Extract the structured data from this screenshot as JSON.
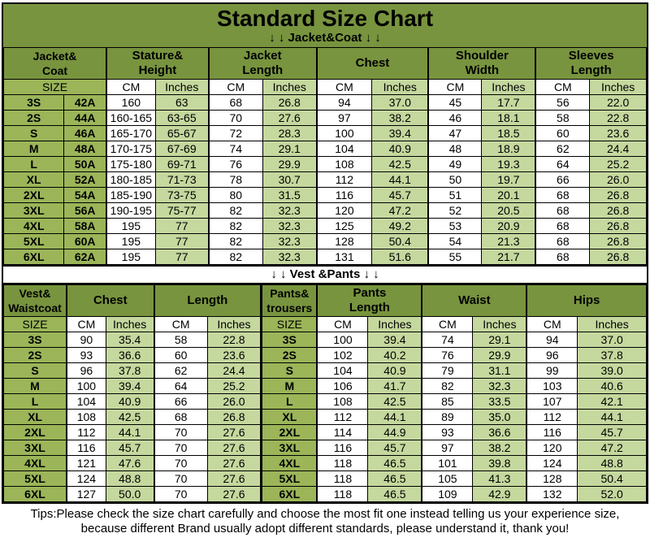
{
  "title": "Standard Size Chart",
  "colors": {
    "header_green": "#78943E",
    "size_green": "#9BB558",
    "light_green": "#C5D89E",
    "border": "#000000",
    "text": "#000000"
  },
  "units": {
    "cm": "CM",
    "inches": "Inches",
    "size": "SIZE"
  },
  "jacket_section": {
    "banner": "↓ ↓  Jacket&Coat  ↓ ↓",
    "groups": [
      "Jacket&\nCoat",
      "Stature&\nHeight",
      "Jacket\nLength",
      "Chest",
      "Shoulder\nWidth",
      "Sleeves\nLength"
    ],
    "rows": [
      {
        "size": "3S",
        "code": "42A",
        "cells": [
          "160",
          "63",
          "68",
          "26.8",
          "94",
          "37.0",
          "45",
          "17.7",
          "56",
          "22.0"
        ]
      },
      {
        "size": "2S",
        "code": "44A",
        "cells": [
          "160-165",
          "63-65",
          "70",
          "27.6",
          "97",
          "38.2",
          "46",
          "18.1",
          "58",
          "22.8"
        ]
      },
      {
        "size": "S",
        "code": "46A",
        "cells": [
          "165-170",
          "65-67",
          "72",
          "28.3",
          "100",
          "39.4",
          "47",
          "18.5",
          "60",
          "23.6"
        ]
      },
      {
        "size": "M",
        "code": "48A",
        "cells": [
          "170-175",
          "67-69",
          "74",
          "29.1",
          "104",
          "40.9",
          "48",
          "18.9",
          "62",
          "24.4"
        ]
      },
      {
        "size": "L",
        "code": "50A",
        "cells": [
          "175-180",
          "69-71",
          "76",
          "29.9",
          "108",
          "42.5",
          "49",
          "19.3",
          "64",
          "25.2"
        ]
      },
      {
        "size": "XL",
        "code": "52A",
        "cells": [
          "180-185",
          "71-73",
          "78",
          "30.7",
          "112",
          "44.1",
          "50",
          "19.7",
          "66",
          "26.0"
        ]
      },
      {
        "size": "2XL",
        "code": "54A",
        "cells": [
          "185-190",
          "73-75",
          "80",
          "31.5",
          "116",
          "45.7",
          "51",
          "20.1",
          "68",
          "26.8"
        ]
      },
      {
        "size": "3XL",
        "code": "56A",
        "cells": [
          "190-195",
          "75-77",
          "82",
          "32.3",
          "120",
          "47.2",
          "52",
          "20.5",
          "68",
          "26.8"
        ]
      },
      {
        "size": "4XL",
        "code": "58A",
        "cells": [
          "195",
          "77",
          "82",
          "32.3",
          "125",
          "49.2",
          "53",
          "20.9",
          "68",
          "26.8"
        ]
      },
      {
        "size": "5XL",
        "code": "60A",
        "cells": [
          "195",
          "77",
          "82",
          "32.3",
          "128",
          "50.4",
          "54",
          "21.3",
          "68",
          "26.8"
        ]
      },
      {
        "size": "6XL",
        "code": "62A",
        "cells": [
          "195",
          "77",
          "82",
          "32.3",
          "131",
          "51.6",
          "55",
          "21.7",
          "68",
          "26.8"
        ]
      }
    ]
  },
  "vest_pants_banner": "↓ ↓  Vest &Pants ↓ ↓",
  "vest_section": {
    "corner": "Vest&\nWaistcoat",
    "groups": [
      "Chest",
      "Length"
    ],
    "rows": [
      {
        "size": "3S",
        "cells": [
          "90",
          "35.4",
          "58",
          "22.8"
        ]
      },
      {
        "size": "2S",
        "cells": [
          "93",
          "36.6",
          "60",
          "23.6"
        ]
      },
      {
        "size": "S",
        "cells": [
          "96",
          "37.8",
          "62",
          "24.4"
        ]
      },
      {
        "size": "M",
        "cells": [
          "100",
          "39.4",
          "64",
          "25.2"
        ]
      },
      {
        "size": "L",
        "cells": [
          "104",
          "40.9",
          "66",
          "26.0"
        ]
      },
      {
        "size": "XL",
        "cells": [
          "108",
          "42.5",
          "68",
          "26.8"
        ]
      },
      {
        "size": "2XL",
        "cells": [
          "112",
          "44.1",
          "70",
          "27.6"
        ]
      },
      {
        "size": "3XL",
        "cells": [
          "116",
          "45.7",
          "70",
          "27.6"
        ]
      },
      {
        "size": "4XL",
        "cells": [
          "121",
          "47.6",
          "70",
          "27.6"
        ]
      },
      {
        "size": "5XL",
        "cells": [
          "124",
          "48.8",
          "70",
          "27.6"
        ]
      },
      {
        "size": "6XL",
        "cells": [
          "127",
          "50.0",
          "70",
          "27.6"
        ]
      }
    ]
  },
  "pants_section": {
    "corner": "Pants&\ntrousers",
    "groups": [
      "Pants\nLength",
      "Waist",
      "Hips"
    ],
    "rows": [
      {
        "size": "3S",
        "cells": [
          "100",
          "39.4",
          "74",
          "29.1",
          "94",
          "37.0"
        ]
      },
      {
        "size": "2S",
        "cells": [
          "102",
          "40.2",
          "76",
          "29.9",
          "96",
          "37.8"
        ]
      },
      {
        "size": "S",
        "cells": [
          "104",
          "40.9",
          "79",
          "31.1",
          "99",
          "39.0"
        ]
      },
      {
        "size": "M",
        "cells": [
          "106",
          "41.7",
          "82",
          "32.3",
          "103",
          "40.6"
        ]
      },
      {
        "size": "L",
        "cells": [
          "108",
          "42.5",
          "85",
          "33.5",
          "107",
          "42.1"
        ]
      },
      {
        "size": "XL",
        "cells": [
          "112",
          "44.1",
          "89",
          "35.0",
          "112",
          "44.1"
        ]
      },
      {
        "size": "2XL",
        "cells": [
          "114",
          "44.9",
          "93",
          "36.6",
          "116",
          "45.7"
        ]
      },
      {
        "size": "3XL",
        "cells": [
          "116",
          "45.7",
          "97",
          "38.2",
          "120",
          "47.2"
        ]
      },
      {
        "size": "4XL",
        "cells": [
          "118",
          "46.5",
          "101",
          "39.8",
          "124",
          "48.8"
        ]
      },
      {
        "size": "5XL",
        "cells": [
          "118",
          "46.5",
          "105",
          "41.3",
          "128",
          "50.4"
        ]
      },
      {
        "size": "6XL",
        "cells": [
          "118",
          "46.5",
          "109",
          "42.9",
          "132",
          "52.0"
        ]
      }
    ]
  },
  "tips_line1": "Tips:Please check the size chart carefully and choose the most fit one instead telling us your experience size,",
  "tips_line2": "because different Brand usually adopt different standards, please understand it, thank you!"
}
